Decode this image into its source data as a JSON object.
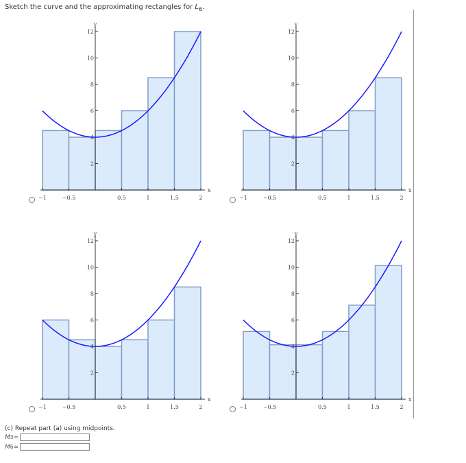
{
  "prompt": {
    "text": "Sketch the curve and the approximating rectangles for ",
    "var": "L",
    "sub": "6",
    "end": "."
  },
  "chart_data": [
    {
      "type": "bar",
      "function": "2x^2+4",
      "xlim": [
        -1,
        2
      ],
      "ylim": [
        0,
        12
      ],
      "xlabel": "x",
      "ylabel": "y",
      "xticks": [
        "-1",
        "-0.5",
        "0.5",
        "1",
        "1.5",
        "2"
      ],
      "yticks": [
        "2",
        "4",
        "6",
        "8",
        "10",
        "12"
      ],
      "rect_x": [
        -1,
        -0.5,
        0,
        0.5,
        1,
        1.5
      ],
      "rect_width": 0.5,
      "values": [
        4.5,
        4,
        4.5,
        6,
        8.5,
        12
      ]
    },
    {
      "type": "bar",
      "function": "2x^2+4",
      "xlim": [
        -1,
        2
      ],
      "ylim": [
        0,
        12
      ],
      "xlabel": "x",
      "ylabel": "y",
      "xticks": [
        "-1",
        "-0.5",
        "0.5",
        "1",
        "1.5",
        "2"
      ],
      "yticks": [
        "2",
        "4",
        "6",
        "8",
        "10",
        "12"
      ],
      "rect_x": [
        -1,
        -0.5,
        0,
        0.5,
        1,
        1.5
      ],
      "rect_width": 0.5,
      "values": [
        4.5,
        4,
        4,
        4.5,
        6,
        8.5
      ]
    },
    {
      "type": "bar",
      "function": "2x^2+4",
      "xlim": [
        -1,
        2
      ],
      "ylim": [
        0,
        12
      ],
      "xlabel": "x",
      "ylabel": "y",
      "xticks": [
        "-1",
        "-0.5",
        "0.5",
        "1",
        "1.5",
        "2"
      ],
      "yticks": [
        "2",
        "4",
        "6",
        "8",
        "10",
        "12"
      ],
      "rect_x": [
        -1,
        -0.5,
        0,
        0.5,
        1,
        1.5
      ],
      "rect_width": 0.5,
      "values": [
        6,
        4.5,
        4,
        4.5,
        6,
        8.5
      ]
    },
    {
      "type": "bar",
      "function": "2x^2+4",
      "xlim": [
        -1,
        2
      ],
      "ylim": [
        0,
        12
      ],
      "xlabel": "x",
      "ylabel": "y",
      "xticks": [
        "-1",
        "-0.5",
        "0.5",
        "1",
        "1.5",
        "2"
      ],
      "yticks": [
        "2",
        "4",
        "6",
        "8",
        "10",
        "12"
      ],
      "rect_x": [
        -1,
        -0.5,
        0,
        0.5,
        1,
        1.5
      ],
      "rect_width": 0.5,
      "values": [
        5.125,
        4.125,
        4.125,
        5.125,
        7.125,
        10.125
      ]
    }
  ],
  "colors": {
    "curve": "#1a1aff",
    "rect_fill": "#dcebfc",
    "rect_stroke": "#7f9cc8"
  },
  "partc": {
    "text": "(c) Repeat part (a) using midpoints.",
    "m3_label": "M",
    "m3_sub": "3",
    "m6_label": "M",
    "m6_sub": "6",
    "eq": "=",
    "m3_value": "",
    "m6_value": ""
  }
}
